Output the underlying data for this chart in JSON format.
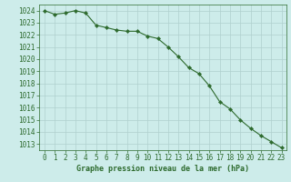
{
  "x": [
    0,
    1,
    2,
    3,
    4,
    5,
    6,
    7,
    8,
    9,
    10,
    11,
    12,
    13,
    14,
    15,
    16,
    17,
    18,
    19,
    20,
    21,
    22,
    23
  ],
  "y": [
    1024.0,
    1023.7,
    1023.8,
    1024.0,
    1023.8,
    1022.8,
    1022.6,
    1022.4,
    1022.3,
    1022.3,
    1021.9,
    1021.7,
    1021.0,
    1020.2,
    1019.3,
    1018.8,
    1017.8,
    1016.5,
    1015.9,
    1015.0,
    1014.3,
    1013.7,
    1013.2,
    1012.7
  ],
  "line_color": "#2d6a2d",
  "marker": "D",
  "marker_size": 2.2,
  "bg_color": "#cdecea",
  "grid_color": "#b0d0ce",
  "title": "Graphe pression niveau de la mer (hPa)",
  "title_color": "#2d6a2d",
  "ylabel_ticks": [
    1013,
    1014,
    1015,
    1016,
    1017,
    1018,
    1019,
    1020,
    1021,
    1022,
    1023,
    1024
  ],
  "ylim": [
    1012.5,
    1024.5
  ],
  "xlim": [
    -0.5,
    23.5
  ],
  "xlabel_ticks": [
    0,
    1,
    2,
    3,
    4,
    5,
    6,
    7,
    8,
    9,
    10,
    11,
    12,
    13,
    14,
    15,
    16,
    17,
    18,
    19,
    20,
    21,
    22,
    23
  ],
  "tick_fontsize": 5.5,
  "title_fontsize": 6.0,
  "linewidth": 0.8
}
